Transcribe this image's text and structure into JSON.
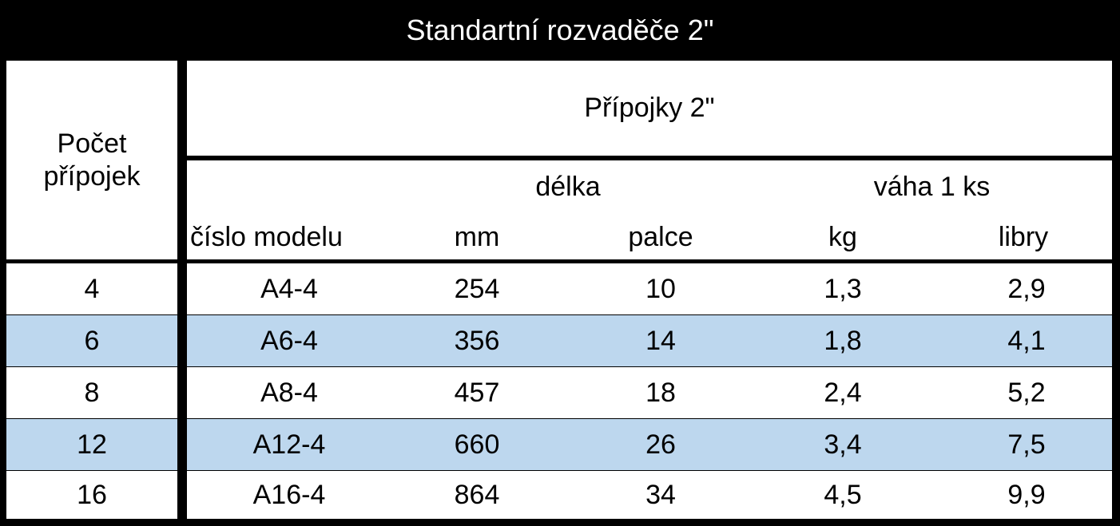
{
  "title": "Standartní rozvaděče 2\"",
  "table": {
    "row_header": "Počet přípojek",
    "group_header": "Přípojky 2\"",
    "subgroups": [
      "délka",
      "váha 1 ks"
    ],
    "columns": [
      "číslo modelu",
      "mm",
      "palce",
      "kg",
      "libry"
    ],
    "rows": [
      [
        "4",
        "A4-4",
        "254",
        "10",
        "1,3",
        "2,9"
      ],
      [
        "6",
        "A6-4",
        "356",
        "14",
        "1,8",
        "4,1"
      ],
      [
        "8",
        "A8-4",
        "457",
        "18",
        "2,4",
        "5,2"
      ],
      [
        "12",
        "A12-4",
        "660",
        "26",
        "3,4",
        "7,5"
      ],
      [
        "16",
        "A16-4",
        "864",
        "34",
        "4,5",
        "9,9"
      ]
    ]
  }
}
